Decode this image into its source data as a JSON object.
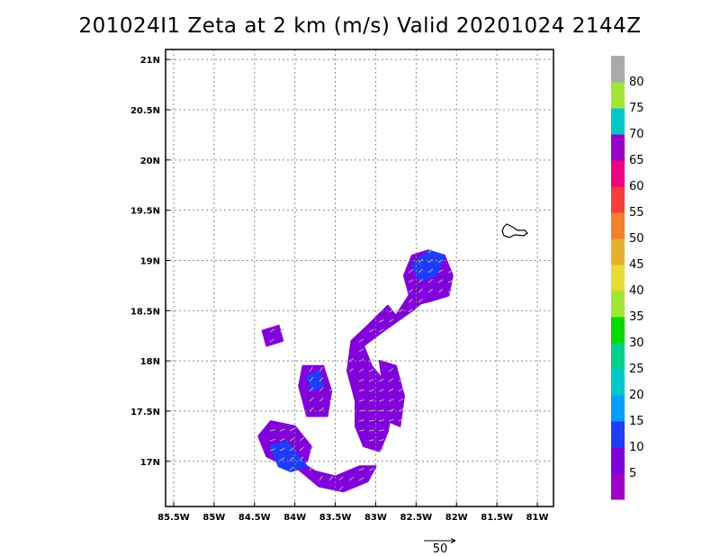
{
  "title": "201024I1 Zeta at 2 km (m/s) Valid 20201024 2144Z",
  "chart_data": {
    "type": "heatmap",
    "title": "201024I1 Zeta at 2 km (m/s) Valid 20201024 2144Z",
    "xlim": [
      -85.6,
      -80.8
    ],
    "ylim": [
      16.55,
      21.1
    ],
    "x_ticks": [
      -85.5,
      -85,
      -84.5,
      -84,
      -83.5,
      -83,
      -82.5,
      -82,
      -81.5,
      -81
    ],
    "x_tick_labels": [
      "85.5W",
      "85W",
      "84.5W",
      "84W",
      "83.5W",
      "83W",
      "82.5W",
      "82W",
      "81.5W",
      "81W"
    ],
    "y_ticks": [
      17,
      17.5,
      18,
      18.5,
      19,
      19.5,
      20,
      20.5,
      21
    ],
    "y_tick_labels": [
      "17N",
      "17.5N",
      "18N",
      "18.5N",
      "19N",
      "19.5N",
      "20N",
      "20.5N",
      "21N"
    ],
    "grid": true,
    "colorbar": {
      "labels": [
        "5",
        "10",
        "15",
        "20",
        "25",
        "30",
        "35",
        "40",
        "45",
        "50",
        "55",
        "60",
        "65",
        "70",
        "75",
        "80"
      ],
      "colors": [
        "#a000c8",
        "#8200dc",
        "#1e3cff",
        "#00a0ff",
        "#00c8c8",
        "#00d28c",
        "#00dc00",
        "#a0e632",
        "#e6dc32",
        "#e6af2d",
        "#f08228",
        "#fa3c3c",
        "#f00082",
        "#9600c8",
        "#00c8c8",
        "#a0e632",
        "#aaaaaa"
      ]
    },
    "vector_reference": {
      "label": "50",
      "value": 50
    },
    "field_regions": [
      {
        "name": "main band",
        "points": [
          [
            -82.75,
            18.45
          ],
          [
            -82.35,
            18.95
          ],
          [
            -82.15,
            19.05
          ],
          [
            -82.25,
            18.7
          ],
          [
            -82.55,
            18.5
          ],
          [
            -82.9,
            18.3
          ],
          [
            -83.15,
            18.15
          ],
          [
            -83.05,
            17.95
          ],
          [
            -82.9,
            17.8
          ],
          [
            -82.8,
            17.55
          ],
          [
            -82.85,
            17.3
          ],
          [
            -82.95,
            17.1
          ],
          [
            -83.15,
            17.15
          ],
          [
            -83.25,
            17.35
          ],
          [
            -83.25,
            17.6
          ],
          [
            -83.35,
            17.9
          ],
          [
            -83.3,
            18.2
          ],
          [
            -83.1,
            18.35
          ],
          [
            -82.85,
            18.55
          ]
        ],
        "value": 5
      },
      {
        "name": "northeast lobe",
        "points": [
          [
            -82.55,
            18.55
          ],
          [
            -82.65,
            18.85
          ],
          [
            -82.55,
            19.05
          ],
          [
            -82.35,
            19.1
          ],
          [
            -82.15,
            19.05
          ],
          [
            -82.05,
            18.85
          ],
          [
            -82.1,
            18.65
          ],
          [
            -82.3,
            18.6
          ]
        ],
        "value": 5
      },
      {
        "name": "southern arc",
        "points": [
          [
            -84.2,
            17.05
          ],
          [
            -84.0,
            16.95
          ],
          [
            -83.7,
            16.75
          ],
          [
            -83.4,
            16.7
          ],
          [
            -83.1,
            16.8
          ],
          [
            -83.0,
            16.95
          ],
          [
            -83.2,
            16.95
          ],
          [
            -83.5,
            16.85
          ],
          [
            -83.75,
            16.9
          ],
          [
            -83.95,
            17.0
          ],
          [
            -84.15,
            17.15
          ]
        ],
        "value": 5
      },
      {
        "name": "southwest blob",
        "points": [
          [
            -84.45,
            17.25
          ],
          [
            -84.3,
            17.4
          ],
          [
            -84.0,
            17.35
          ],
          [
            -83.8,
            17.15
          ],
          [
            -83.85,
            17.0
          ],
          [
            -84.1,
            16.95
          ],
          [
            -84.35,
            17.05
          ]
        ],
        "value": 5
      },
      {
        "name": "western patch",
        "points": [
          [
            -83.95,
            17.75
          ],
          [
            -83.9,
            17.95
          ],
          [
            -83.65,
            17.95
          ],
          [
            -83.55,
            17.7
          ],
          [
            -83.6,
            17.45
          ],
          [
            -83.85,
            17.45
          ]
        ],
        "value": 5
      },
      {
        "name": "eastern patch",
        "points": [
          [
            -82.95,
            18.0
          ],
          [
            -82.75,
            17.95
          ],
          [
            -82.65,
            17.65
          ],
          [
            -82.7,
            17.35
          ],
          [
            -82.85,
            17.4
          ]
        ],
        "value": 5
      },
      {
        "name": "northwest fragment",
        "points": [
          [
            -84.4,
            18.3
          ],
          [
            -84.2,
            18.35
          ],
          [
            -84.15,
            18.2
          ],
          [
            -84.35,
            18.15
          ]
        ],
        "value": 5
      },
      {
        "name": "blue core north",
        "points": [
          [
            -82.55,
            18.95
          ],
          [
            -82.35,
            19.1
          ],
          [
            -82.15,
            19.05
          ],
          [
            -82.25,
            18.85
          ],
          [
            -82.45,
            18.8
          ]
        ],
        "value": 10
      },
      {
        "name": "blue core southwest",
        "points": [
          [
            -84.3,
            17.15
          ],
          [
            -84.1,
            17.2
          ],
          [
            -83.95,
            17.05
          ],
          [
            -83.85,
            16.95
          ],
          [
            -84.05,
            16.9
          ],
          [
            -84.2,
            16.95
          ]
        ],
        "value": 10
      },
      {
        "name": "blue core west",
        "points": [
          [
            -83.85,
            17.85
          ],
          [
            -83.7,
            17.9
          ],
          [
            -83.65,
            17.75
          ],
          [
            -83.8,
            17.7
          ]
        ],
        "value": 10
      }
    ]
  }
}
